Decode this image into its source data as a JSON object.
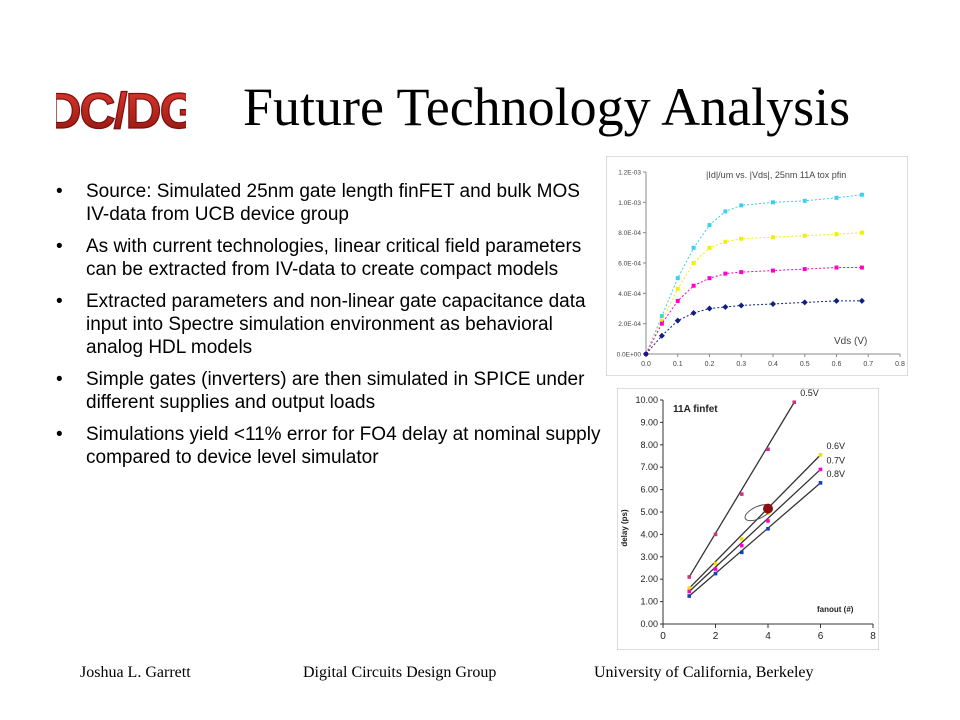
{
  "logo": {
    "text": "DC/DG",
    "color": "#c0201c"
  },
  "title": "Future Technology Analysis",
  "bullets": [
    "Source: Simulated 25nm gate length finFET and bulk MOS IV-data from UCB device group",
    "As with current technologies, linear critical field parameters can be extracted from IV-data to create compact models",
    "Extracted parameters and non-linear gate capacitance data input into Spectre simulation environment as behavioral analog HDL models",
    "Simple gates (inverters) are then simulated in SPICE under different supplies and output loads",
    "Simulations yield <11% error for FO4 delay at nominal supply compared to device level simulator"
  ],
  "bullet_glyph": "•",
  "chart_data": [
    {
      "type": "line",
      "title": "|Id|/um vs. |Vds|, 25nm 11A tox pfin",
      "xlabel": "Vds (V)",
      "ylabel": "",
      "xlim": [
        0,
        0.8
      ],
      "ylim": [
        0,
        0.0012
      ],
      "x_ticks": [
        "0.0",
        "0.1",
        "0.2",
        "0.3",
        "0.4",
        "0.5",
        "0.6",
        "0.7",
        "0.8"
      ],
      "y_ticks": [
        "0.0E+00",
        "2.0E-04",
        "4.0E-04",
        "6.0E-04",
        "8.0E-04",
        "1.0E-03",
        "1.2E-03"
      ],
      "grid": false,
      "legend": "none",
      "series": [
        {
          "color": "#3ad0f0",
          "values": [
            [
              0.0,
              0.0
            ],
            [
              0.05,
              0.00025
            ],
            [
              0.1,
              0.0005
            ],
            [
              0.15,
              0.0007
            ],
            [
              0.2,
              0.00085
            ],
            [
              0.25,
              0.00094
            ],
            [
              0.3,
              0.00098
            ],
            [
              0.4,
              0.001
            ],
            [
              0.5,
              0.00101
            ],
            [
              0.6,
              0.00103
            ],
            [
              0.68,
              0.00105
            ]
          ]
        },
        {
          "color": "#f0f000",
          "values": [
            [
              0.0,
              0.0
            ],
            [
              0.05,
              0.00022
            ],
            [
              0.1,
              0.00043
            ],
            [
              0.15,
              0.0006
            ],
            [
              0.2,
              0.0007
            ],
            [
              0.25,
              0.00074
            ],
            [
              0.3,
              0.00076
            ],
            [
              0.4,
              0.00077
            ],
            [
              0.5,
              0.00078
            ],
            [
              0.6,
              0.00079
            ],
            [
              0.68,
              0.0008
            ]
          ]
        },
        {
          "color": "#ff00cc",
          "values": [
            [
              0.0,
              0.0
            ],
            [
              0.05,
              0.0002
            ],
            [
              0.1,
              0.00035
            ],
            [
              0.15,
              0.00045
            ],
            [
              0.2,
              0.0005
            ],
            [
              0.25,
              0.00053
            ],
            [
              0.3,
              0.00054
            ],
            [
              0.4,
              0.00055
            ],
            [
              0.5,
              0.00056
            ],
            [
              0.6,
              0.00057
            ],
            [
              0.68,
              0.00057
            ]
          ]
        },
        {
          "color": "#102080",
          "values": [
            [
              0.0,
              0.0
            ],
            [
              0.05,
              0.00012
            ],
            [
              0.1,
              0.00022
            ],
            [
              0.15,
              0.00027
            ],
            [
              0.2,
              0.0003
            ],
            [
              0.25,
              0.00031
            ],
            [
              0.3,
              0.00032
            ],
            [
              0.4,
              0.00033
            ],
            [
              0.5,
              0.00034
            ],
            [
              0.6,
              0.00035
            ],
            [
              0.68,
              0.00035
            ]
          ]
        }
      ]
    },
    {
      "type": "line",
      "title": "11A finfet",
      "xlabel": "fanout (#)",
      "ylabel": "delay (ps)",
      "xlim": [
        0,
        8
      ],
      "ylim": [
        0,
        10
      ],
      "x_ticks": [
        "0",
        "2",
        "4",
        "6",
        "8"
      ],
      "y_ticks": [
        "0.00",
        "1.00",
        "2.00",
        "3.00",
        "4.00",
        "5.00",
        "6.00",
        "7.00",
        "8.00",
        "9.00",
        "10.00"
      ],
      "grid": false,
      "legend": "right",
      "highlight_point": [
        4,
        5.15
      ],
      "series": [
        {
          "name": "0.5V",
          "color": "#cc3380",
          "x": [
            1,
            2,
            3,
            4,
            5
          ],
          "values": [
            2.1,
            4.0,
            5.8,
            7.8,
            9.9
          ]
        },
        {
          "name": "0.6V",
          "color": "#f0e000",
          "x": [
            1,
            2,
            3,
            4,
            6
          ],
          "values": [
            1.6,
            2.7,
            3.8,
            4.95,
            7.55
          ]
        },
        {
          "name": "0.7V",
          "color": "#ff00cc",
          "x": [
            1,
            2,
            3,
            4,
            6
          ],
          "values": [
            1.45,
            2.45,
            3.5,
            4.6,
            6.9
          ]
        },
        {
          "name": "0.8V",
          "color": "#1040c0",
          "x": [
            1,
            2,
            3,
            4,
            6
          ],
          "values": [
            1.25,
            2.25,
            3.2,
            4.25,
            6.3
          ]
        }
      ]
    }
  ],
  "footer": {
    "author": "Joshua L. Garrett",
    "group": "Digital Circuits Design Group",
    "university": "University of California, Berkeley"
  }
}
